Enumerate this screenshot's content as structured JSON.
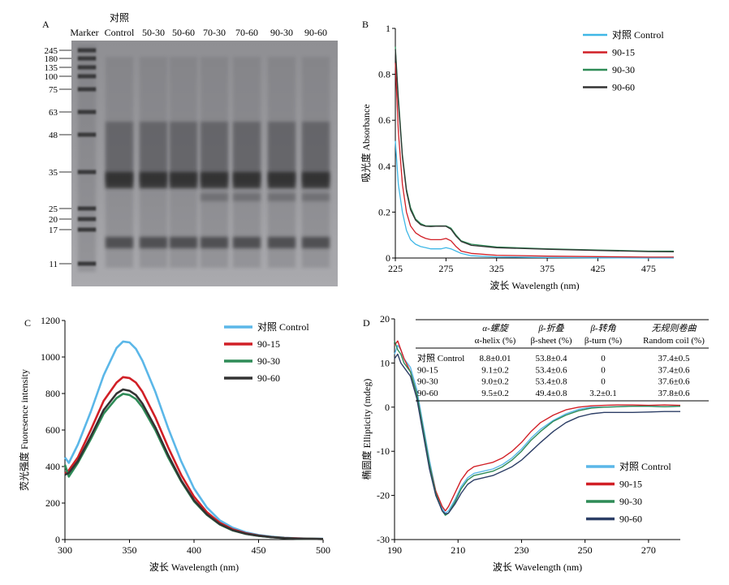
{
  "figure": {
    "panels": [
      "A",
      "B",
      "C",
      "D"
    ]
  },
  "gel": {
    "marker_header": "Marker",
    "control_header_top": "对照",
    "lane_labels": [
      "Control",
      "50-30",
      "50-60",
      "70-30",
      "70-60",
      "90-30",
      "90-60"
    ],
    "marker_kda": [
      "245",
      "180",
      "135",
      "100",
      "75",
      "63",
      "48",
      "35",
      "25",
      "20",
      "17",
      "11"
    ]
  },
  "chart_data": [
    {
      "type": "line",
      "panel": "B",
      "title": "",
      "xlabel": "波长 Wavelength (nm)",
      "ylabel": "吸光度 Absorbance",
      "xlim": [
        225,
        500
      ],
      "ylim": [
        0,
        1.0
      ],
      "xticks": [
        225,
        275,
        325,
        375,
        425,
        475
      ],
      "yticks": [
        0,
        0.2,
        0.4,
        0.6,
        0.8,
        1.0
      ],
      "legend": "top-right",
      "grid": false,
      "series": [
        {
          "name": "对照 Control",
          "color": "#3fb7e6",
          "x": [
            225,
            228,
            232,
            236,
            240,
            245,
            250,
            255,
            260,
            265,
            270,
            275,
            280,
            285,
            290,
            300,
            325,
            375,
            425,
            475,
            500
          ],
          "y": [
            0.51,
            0.32,
            0.2,
            0.12,
            0.08,
            0.06,
            0.05,
            0.045,
            0.04,
            0.04,
            0.04,
            0.045,
            0.04,
            0.03,
            0.02,
            0.01,
            0.005,
            0.002,
            0.001,
            0.0,
            0.0
          ]
        },
        {
          "name": "90-15",
          "color": "#d11f26",
          "x": [
            225,
            228,
            232,
            236,
            240,
            245,
            250,
            255,
            260,
            265,
            270,
            275,
            280,
            285,
            290,
            300,
            325,
            375,
            425,
            475,
            500
          ],
          "y": [
            0.85,
            0.55,
            0.32,
            0.2,
            0.14,
            0.11,
            0.095,
            0.085,
            0.08,
            0.08,
            0.08,
            0.085,
            0.075,
            0.05,
            0.03,
            0.02,
            0.012,
            0.008,
            0.006,
            0.004,
            0.004
          ]
        },
        {
          "name": "90-30",
          "color": "#2e8b57",
          "x": [
            225,
            228,
            232,
            236,
            240,
            245,
            250,
            255,
            260,
            265,
            270,
            275,
            280,
            285,
            290,
            300,
            325,
            375,
            425,
            475,
            500
          ],
          "y": [
            0.92,
            0.7,
            0.45,
            0.3,
            0.22,
            0.17,
            0.15,
            0.14,
            0.14,
            0.14,
            0.14,
            0.14,
            0.13,
            0.1,
            0.075,
            0.06,
            0.048,
            0.04,
            0.035,
            0.03,
            0.03
          ]
        },
        {
          "name": "90-60",
          "color": "#333333",
          "x": [
            225,
            228,
            232,
            236,
            240,
            245,
            250,
            255,
            260,
            265,
            270,
            275,
            280,
            285,
            290,
            300,
            325,
            375,
            425,
            475,
            500
          ],
          "y": [
            0.91,
            0.68,
            0.44,
            0.29,
            0.21,
            0.165,
            0.145,
            0.138,
            0.137,
            0.138,
            0.139,
            0.138,
            0.125,
            0.095,
            0.072,
            0.055,
            0.045,
            0.038,
            0.033,
            0.028,
            0.027
          ]
        }
      ]
    },
    {
      "type": "line",
      "panel": "C",
      "title": "",
      "xlabel": "波长 Wavelength (nm)",
      "ylabel": "荧光强度 Fuoresence intensity",
      "xlim": [
        300,
        500
      ],
      "ylim": [
        0,
        1200
      ],
      "xticks": [
        300,
        350,
        400,
        450,
        500
      ],
      "yticks": [
        0,
        200,
        400,
        600,
        800,
        1000,
        1200
      ],
      "legend": "top-right",
      "grid": false,
      "series": [
        {
          "name": "对照 Control",
          "color": "#5bb7e8",
          "x": [
            300,
            303,
            310,
            320,
            330,
            340,
            345,
            350,
            355,
            360,
            370,
            380,
            390,
            400,
            410,
            420,
            430,
            440,
            450,
            460,
            470,
            480,
            490,
            500
          ],
          "y": [
            450,
            420,
            520,
            700,
            900,
            1050,
            1085,
            1080,
            1045,
            980,
            810,
            610,
            430,
            280,
            175,
            105,
            65,
            40,
            25,
            16,
            10,
            7,
            5,
            4
          ]
        },
        {
          "name": "90-15",
          "color": "#d11f26",
          "x": [
            300,
            303,
            310,
            320,
            330,
            340,
            345,
            350,
            355,
            360,
            370,
            380,
            390,
            400,
            410,
            420,
            430,
            440,
            450,
            460,
            470,
            480,
            490,
            500
          ],
          "y": [
            360,
            380,
            450,
            600,
            760,
            860,
            890,
            885,
            860,
            810,
            670,
            505,
            355,
            235,
            150,
            92,
            56,
            35,
            22,
            14,
            9,
            6,
            4,
            3
          ]
        },
        {
          "name": "90-30",
          "color": "#2e8b57",
          "x": [
            300,
            303,
            310,
            320,
            330,
            340,
            345,
            350,
            355,
            360,
            370,
            380,
            390,
            400,
            410,
            420,
            430,
            440,
            450,
            460,
            470,
            480,
            490,
            500
          ],
          "y": [
            410,
            345,
            420,
            550,
            690,
            775,
            798,
            792,
            770,
            725,
            600,
            450,
            320,
            210,
            135,
            82,
            50,
            31,
            20,
            13,
            8,
            5,
            4,
            3
          ]
        },
        {
          "name": "90-60",
          "color": "#333333",
          "x": [
            300,
            303,
            310,
            320,
            330,
            340,
            345,
            350,
            355,
            360,
            370,
            380,
            390,
            400,
            410,
            420,
            430,
            440,
            450,
            460,
            470,
            480,
            490,
            500
          ],
          "y": [
            355,
            365,
            430,
            565,
            710,
            800,
            822,
            815,
            792,
            745,
            615,
            462,
            325,
            215,
            138,
            84,
            51,
            32,
            21,
            13,
            8,
            5,
            4,
            3
          ]
        }
      ]
    },
    {
      "type": "line",
      "panel": "D",
      "title": "",
      "xlabel": "波长 Wavelength (nm)",
      "ylabel": "椭圆度 Ellipticity (mdeg)",
      "xlim": [
        190,
        280
      ],
      "ylim": [
        -30,
        20
      ],
      "xticks": [
        190,
        210,
        230,
        250,
        270
      ],
      "yticks": [
        -30,
        -20,
        -10,
        0,
        10,
        20
      ],
      "legend": "bottom-right",
      "grid": false,
      "series": [
        {
          "name": "对照 Control",
          "color": "#5bb7e8",
          "x": [
            190,
            191,
            192,
            193,
            195,
            197,
            199,
            201,
            203,
            205,
            206,
            207,
            209,
            211,
            213,
            215,
            218,
            221,
            224,
            227,
            230,
            233,
            236,
            240,
            244,
            248,
            252,
            256,
            260,
            265,
            270,
            275,
            280
          ],
          "y": [
            12,
            14,
            13,
            11,
            9,
            4,
            -4,
            -12,
            -19,
            -23,
            -24,
            -23.5,
            -21,
            -18,
            -16,
            -15,
            -14.5,
            -14,
            -13,
            -11.5,
            -9.5,
            -7,
            -5,
            -3,
            -1.5,
            -0.5,
            0,
            0,
            0.1,
            0.2,
            0.2,
            0.1,
            0.2
          ]
        },
        {
          "name": "90-15",
          "color": "#d11f26",
          "x": [
            190,
            191,
            192,
            193,
            195,
            197,
            199,
            201,
            203,
            205,
            206,
            207,
            209,
            211,
            213,
            215,
            218,
            221,
            224,
            227,
            230,
            233,
            236,
            240,
            244,
            248,
            252,
            256,
            260,
            265,
            270,
            275,
            280
          ],
          "y": [
            14,
            15,
            13,
            11,
            8,
            3,
            -5,
            -13,
            -19,
            -22.5,
            -23.5,
            -22.5,
            -19.5,
            -16.5,
            -14.5,
            -13.5,
            -13,
            -12.5,
            -11.5,
            -10,
            -8,
            -5.5,
            -3.5,
            -1.8,
            -0.6,
            0,
            0.3,
            0.4,
            0.5,
            0.5,
            0.4,
            0.5,
            0.4
          ]
        },
        {
          "name": "90-30",
          "color": "#2e8b57",
          "x": [
            190,
            191,
            192,
            193,
            195,
            197,
            199,
            201,
            203,
            205,
            206,
            207,
            209,
            211,
            213,
            215,
            218,
            221,
            224,
            227,
            230,
            233,
            236,
            240,
            244,
            248,
            252,
            256,
            260,
            265,
            270,
            275,
            280
          ],
          "y": [
            15,
            13,
            12,
            10,
            8,
            3,
            -5,
            -13,
            -19.5,
            -23.5,
            -24.5,
            -24,
            -21.5,
            -18.5,
            -16.5,
            -15.5,
            -15,
            -14.5,
            -13.5,
            -12,
            -10,
            -7.5,
            -5.5,
            -3.2,
            -1.8,
            -0.8,
            -0.2,
            0,
            0.1,
            0.2,
            0.2,
            0.1,
            0.2
          ]
        },
        {
          "name": "90-60",
          "color": "#2c3e66",
          "x": [
            190,
            191,
            192,
            193,
            195,
            197,
            199,
            201,
            203,
            205,
            206,
            207,
            209,
            211,
            213,
            215,
            218,
            221,
            224,
            227,
            230,
            233,
            236,
            240,
            244,
            248,
            252,
            256,
            260,
            265,
            270,
            275,
            280
          ],
          "y": [
            11,
            12,
            10,
            9,
            7,
            2,
            -6,
            -14,
            -20,
            -23.5,
            -24.2,
            -24,
            -22,
            -19.5,
            -17.5,
            -16.5,
            -16,
            -15.5,
            -14.5,
            -13.5,
            -12,
            -10,
            -8,
            -5.5,
            -3.5,
            -2.2,
            -1.5,
            -1.2,
            -1.2,
            -1.2,
            -1.1,
            -1,
            -1
          ]
        }
      ],
      "table": {
        "col_headers_top": [
          "α-螺旋",
          "β-折叠",
          "β-转角",
          "无规则卷曲"
        ],
        "col_headers_bottom": [
          "α-helix (%)",
          "β-sheet (%)",
          "β-turn (%)",
          "Random coil (%)"
        ],
        "rows": [
          {
            "label": "对照 Control",
            "values": [
              "8.8±0.01",
              "53.8±0.4",
              "0",
              "37.4±0.5"
            ]
          },
          {
            "label": "90-15",
            "values": [
              "9.1±0.2",
              "53.4±0.6",
              "0",
              "37.4±0.6"
            ]
          },
          {
            "label": "90-30",
            "values": [
              "9.0±0.2",
              "53.4±0.8",
              "0",
              "37.6±0.6"
            ]
          },
          {
            "label": "90-60",
            "values": [
              "9.5±0.2",
              "49.4±0.8",
              "3.2±0.1",
              "37.8±0.6"
            ]
          }
        ]
      }
    }
  ]
}
